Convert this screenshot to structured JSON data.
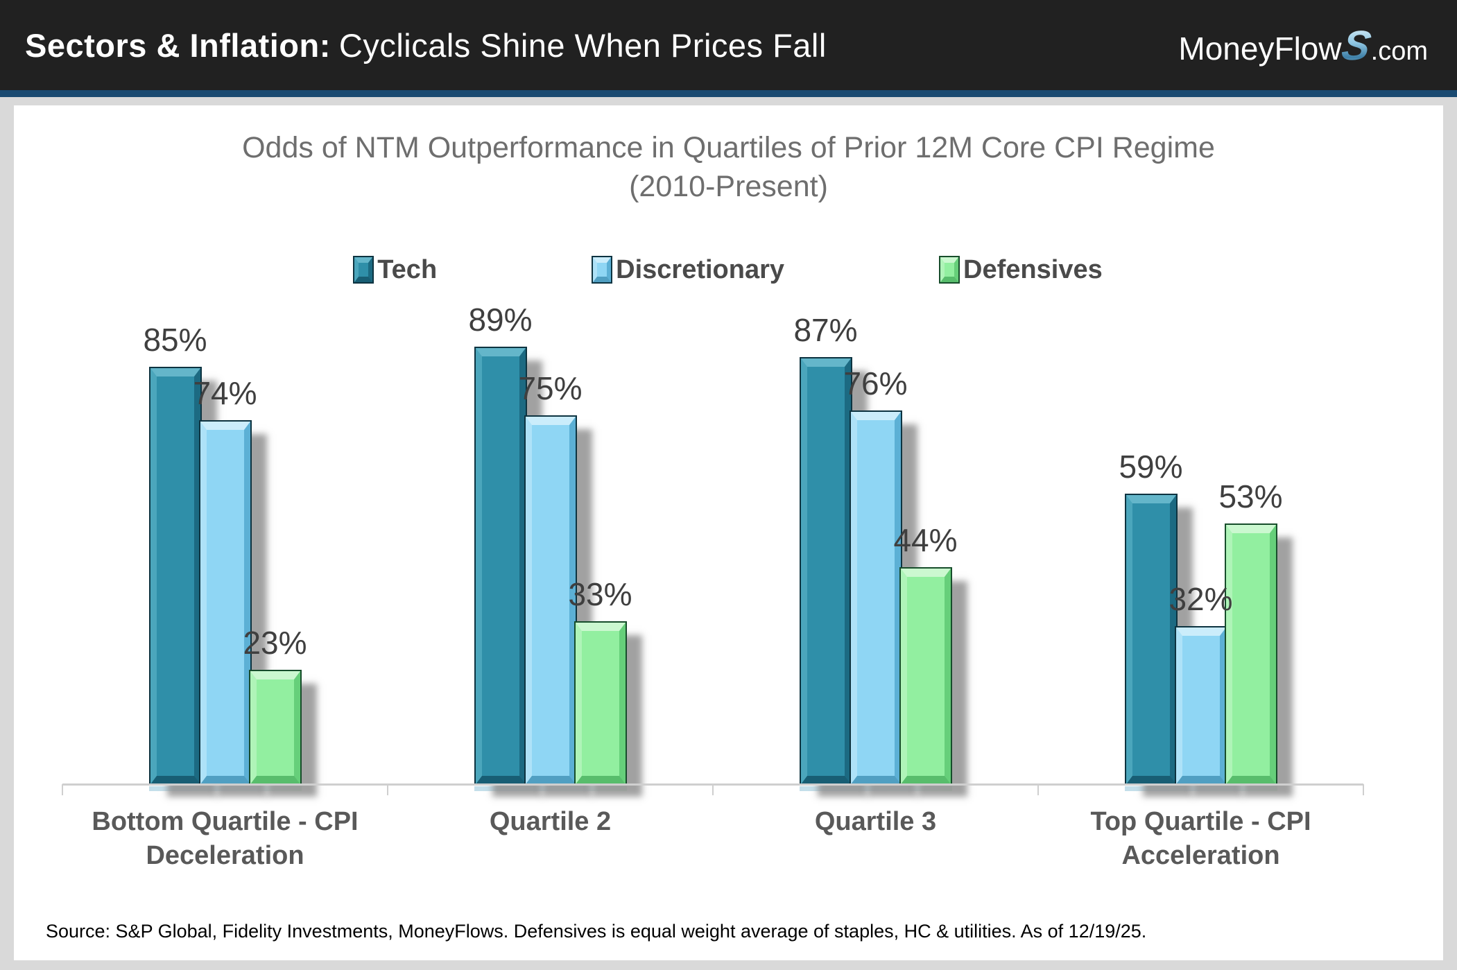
{
  "header": {
    "title_bold": "Sectors & Inflation:",
    "title_rest": "Cyclicals Shine When Prices Fall",
    "logo": {
      "part1": "MoneyFlow",
      "s": "S",
      "part2": ".com"
    }
  },
  "colors": {
    "header_bg": "#212121",
    "accent_stripe": "#1A4A71",
    "page_bg": "#D9D9D9",
    "panel_bg": "#FFFFFF",
    "title_text": "#6E6E6E",
    "value_label_text": "#3F3F3F",
    "category_label_text": "#595959"
  },
  "chart": {
    "title_line1": "Odds of NTM Outperformance in Quartiles of Prior 12M Core CPI Regime",
    "title_line2": "(2010-Present)",
    "source": "Source: S&P Global, Fidelity Investments, MoneyFlows. Defensives is equal weight average of staples, HC & utilities. As of 12/19/25."
  },
  "chart_data": {
    "type": "bar",
    "title": "Odds of NTM Outperformance in Quartiles of Prior 12M Core CPI Regime (2010-Present)",
    "categories": [
      "Bottom Quartile - CPI Deceleration",
      "Quartile 2",
      "Quartile 3",
      "Top Quartile - CPI Acceleration"
    ],
    "series": [
      {
        "name": "Tech",
        "color": "#2F8FA9",
        "values": [
          85,
          89,
          87,
          59
        ]
      },
      {
        "name": "Discretionary",
        "color": "#8FD6F4",
        "values": [
          74,
          75,
          76,
          32
        ]
      },
      {
        "name": "Defensives",
        "color": "#92EFA0",
        "values": [
          23,
          33,
          44,
          53
        ]
      }
    ],
    "unit": "%",
    "ylim": [
      0,
      100
    ],
    "xlabel": "",
    "ylabel": "",
    "grid": false,
    "legend_position": "top",
    "data_labels": true
  }
}
